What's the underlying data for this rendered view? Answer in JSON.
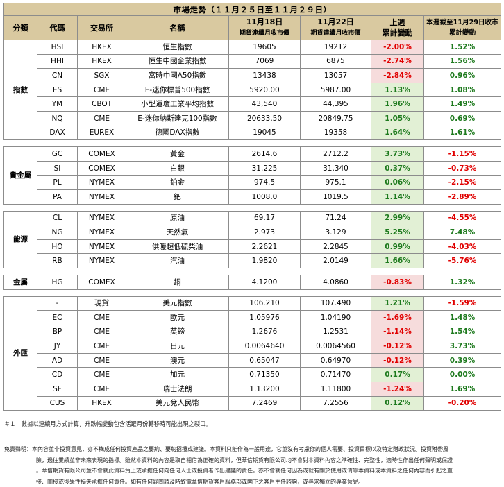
{
  "title": "市場走勢（１１月２５日至１１月２９日）",
  "headers": {
    "category": "分類",
    "code": "代碼",
    "exchange": "交易所",
    "name": "名稱",
    "date1": "11月18日",
    "date1_sub": "期貨連續月收市價",
    "date2": "11月22日",
    "date2_sub": "期貨連續月收市價",
    "weekly_l1": "上週",
    "weekly_l2": "累計變動",
    "week_l1": "本週截至11月29日收市",
    "week_l2": "累計變動"
  },
  "groups": [
    {
      "category": "指數",
      "rows": [
        {
          "code": "HSI",
          "exchange": "HKEX",
          "name": "恒生指數",
          "p1": "19605",
          "p2": "19212",
          "wchg": "-2.00%",
          "tchg": "1.52%"
        },
        {
          "code": "HHI",
          "exchange": "HKEX",
          "name": "恒生中國企業指數",
          "p1": "7069",
          "p2": "6875",
          "wchg": "-2.74%",
          "tchg": "1.56%"
        },
        {
          "code": "CN",
          "exchange": "SGX",
          "name": "富時中國A50指數",
          "p1": "13438",
          "p2": "13057",
          "wchg": "-2.84%",
          "tchg": "0.96%"
        },
        {
          "code": "ES",
          "exchange": "CME",
          "name": "E-迷你標普500指數",
          "p1": "5920.00",
          "p2": "5987.00",
          "wchg": "1.13%",
          "tchg": "1.08%"
        },
        {
          "code": "YM",
          "exchange": "CBOT",
          "name": "小型道瓊工業平均指數",
          "p1": "43,540",
          "p2": "44,395",
          "wchg": "1.96%",
          "tchg": "1.49%"
        },
        {
          "code": "NQ",
          "exchange": "CME",
          "name": "E-迷你納斯達克100指數",
          "p1": "20633.50",
          "p2": "20849.75",
          "wchg": "1.05%",
          "tchg": "0.69%"
        },
        {
          "code": "DAX",
          "exchange": "EUREX",
          "name": "德國DAX指數",
          "p1": "19045",
          "p2": "19358",
          "wchg": "1.64%",
          "tchg": "1.61%"
        }
      ]
    },
    {
      "category": "貴金屬",
      "rows": [
        {
          "code": "GC",
          "exchange": "COMEX",
          "name": "黃金",
          "p1": "2614.6",
          "p2": "2712.2",
          "wchg": "3.73%",
          "tchg": "-1.15%"
        },
        {
          "code": "SI",
          "exchange": "COMEX",
          "name": "白銀",
          "p1": "31.225",
          "p2": "31.340",
          "wchg": "0.37%",
          "tchg": "-0.73%"
        },
        {
          "code": "PL",
          "exchange": "NYMEX",
          "name": "鉑金",
          "p1": "974.5",
          "p2": "975.1",
          "wchg": "0.06%",
          "tchg": "-2.15%"
        },
        {
          "code": "PA",
          "exchange": "NYMEX",
          "name": "鈀",
          "p1": "1008.0",
          "p2": "1019.5",
          "wchg": "1.14%",
          "tchg": "-2.89%"
        }
      ]
    },
    {
      "category": "能源",
      "rows": [
        {
          "code": "CL",
          "exchange": "NYMEX",
          "name": "原油",
          "p1": "69.17",
          "p2": "71.24",
          "wchg": "2.99%",
          "tchg": "-4.55%"
        },
        {
          "code": "NG",
          "exchange": "NYMEX",
          "name": "天然氣",
          "p1": "2.973",
          "p2": "3.129",
          "wchg": "5.25%",
          "tchg": "7.48%"
        },
        {
          "code": "HO",
          "exchange": "NYMEX",
          "name": "供暖超低硫柴油",
          "p1": "2.2621",
          "p2": "2.2845",
          "wchg": "0.99%",
          "tchg": "-4.03%"
        },
        {
          "code": "RB",
          "exchange": "NYMEX",
          "name": "汽油",
          "p1": "1.9820",
          "p2": "2.0149",
          "wchg": "1.66%",
          "tchg": "-5.76%"
        }
      ]
    },
    {
      "category": "金屬",
      "rows": [
        {
          "code": "HG",
          "exchange": "COMEX",
          "name": "銅",
          "p1": "4.1200",
          "p2": "4.0860",
          "wchg": "-0.83%",
          "tchg": "1.32%"
        }
      ]
    },
    {
      "category": "外匯",
      "rows": [
        {
          "code": "-",
          "exchange": "現貨",
          "name": "美元指數",
          "p1": "106.210",
          "p2": "107.490",
          "wchg": "1.21%",
          "tchg": "-1.59%"
        },
        {
          "code": "EC",
          "exchange": "CME",
          "name": "歐元",
          "p1": "1.05976",
          "p2": "1.04190",
          "wchg": "-1.69%",
          "tchg": "1.48%"
        },
        {
          "code": "BP",
          "exchange": "CME",
          "name": "英鎊",
          "p1": "1.2676",
          "p2": "1.2531",
          "wchg": "-1.14%",
          "tchg": "1.54%"
        },
        {
          "code": "JY",
          "exchange": "CME",
          "name": "日元",
          "p1": "0.0064640",
          "p2": "0.0064560",
          "wchg": "-0.12%",
          "tchg": "3.73%"
        },
        {
          "code": "AD",
          "exchange": "CME",
          "name": "澳元",
          "p1": "0.65047",
          "p2": "0.64970",
          "wchg": "-0.12%",
          "tchg": "0.39%"
        },
        {
          "code": "CD",
          "exchange": "CME",
          "name": "加元",
          "p1": "0.71350",
          "p2": "0.71470",
          "wchg": "0.17%",
          "tchg": "0.00%"
        },
        {
          "code": "SF",
          "exchange": "CME",
          "name": "瑞士法朗",
          "p1": "1.13200",
          "p2": "1.11800",
          "wchg": "-1.24%",
          "tchg": "1.69%"
        },
        {
          "code": "CUS",
          "exchange": "HKEX",
          "name": "美元兌人民幣",
          "p1": "7.2469",
          "p2": "7.2556",
          "wchg": "0.12%",
          "tchg": "-0.20%"
        }
      ]
    }
  ],
  "note": "＃１　數據以連續月方式計算，升跌幅變動包含活躍月份轉移時可能出現之裂口。",
  "disclaimer": [
    "免責聲明：本內容並非投資意見，亦不構成任何投資產品之要約、要約招攬或建議。本資料只能作為一般用途，它並沒有考慮你的個人需要、投資目標以及特定財政狀況。投資附帶風",
    "險，過往業績並非未來表現的指標。雖然本資料的內容是取自相信為正確的資料，但華信期貨有限公司均不會對本資料內容之準確性、完整性，適時性作出任何聲明或保證",
    "。華信期貨有限公司並不會就此資料負上或承擔任何向任何人士或投資者作出建議的責任。亦不會就任何因為或就有關於使用或倚靠本資料或本資料之任何內容而引起之直",
    "接、間接或後果性損失承擔任何責任。如有任何疑問請及時致電華信期貨客戶服務部或閣下之客戶主任諮詢，或尋求獨立的專業意見。"
  ],
  "colors": {
    "header_bg": "#d9c9a0",
    "up_bg": "#e2f0d5",
    "down_bg": "#f6dcdc",
    "up_text": "#1e7a1e",
    "down_text": "#e00000"
  }
}
